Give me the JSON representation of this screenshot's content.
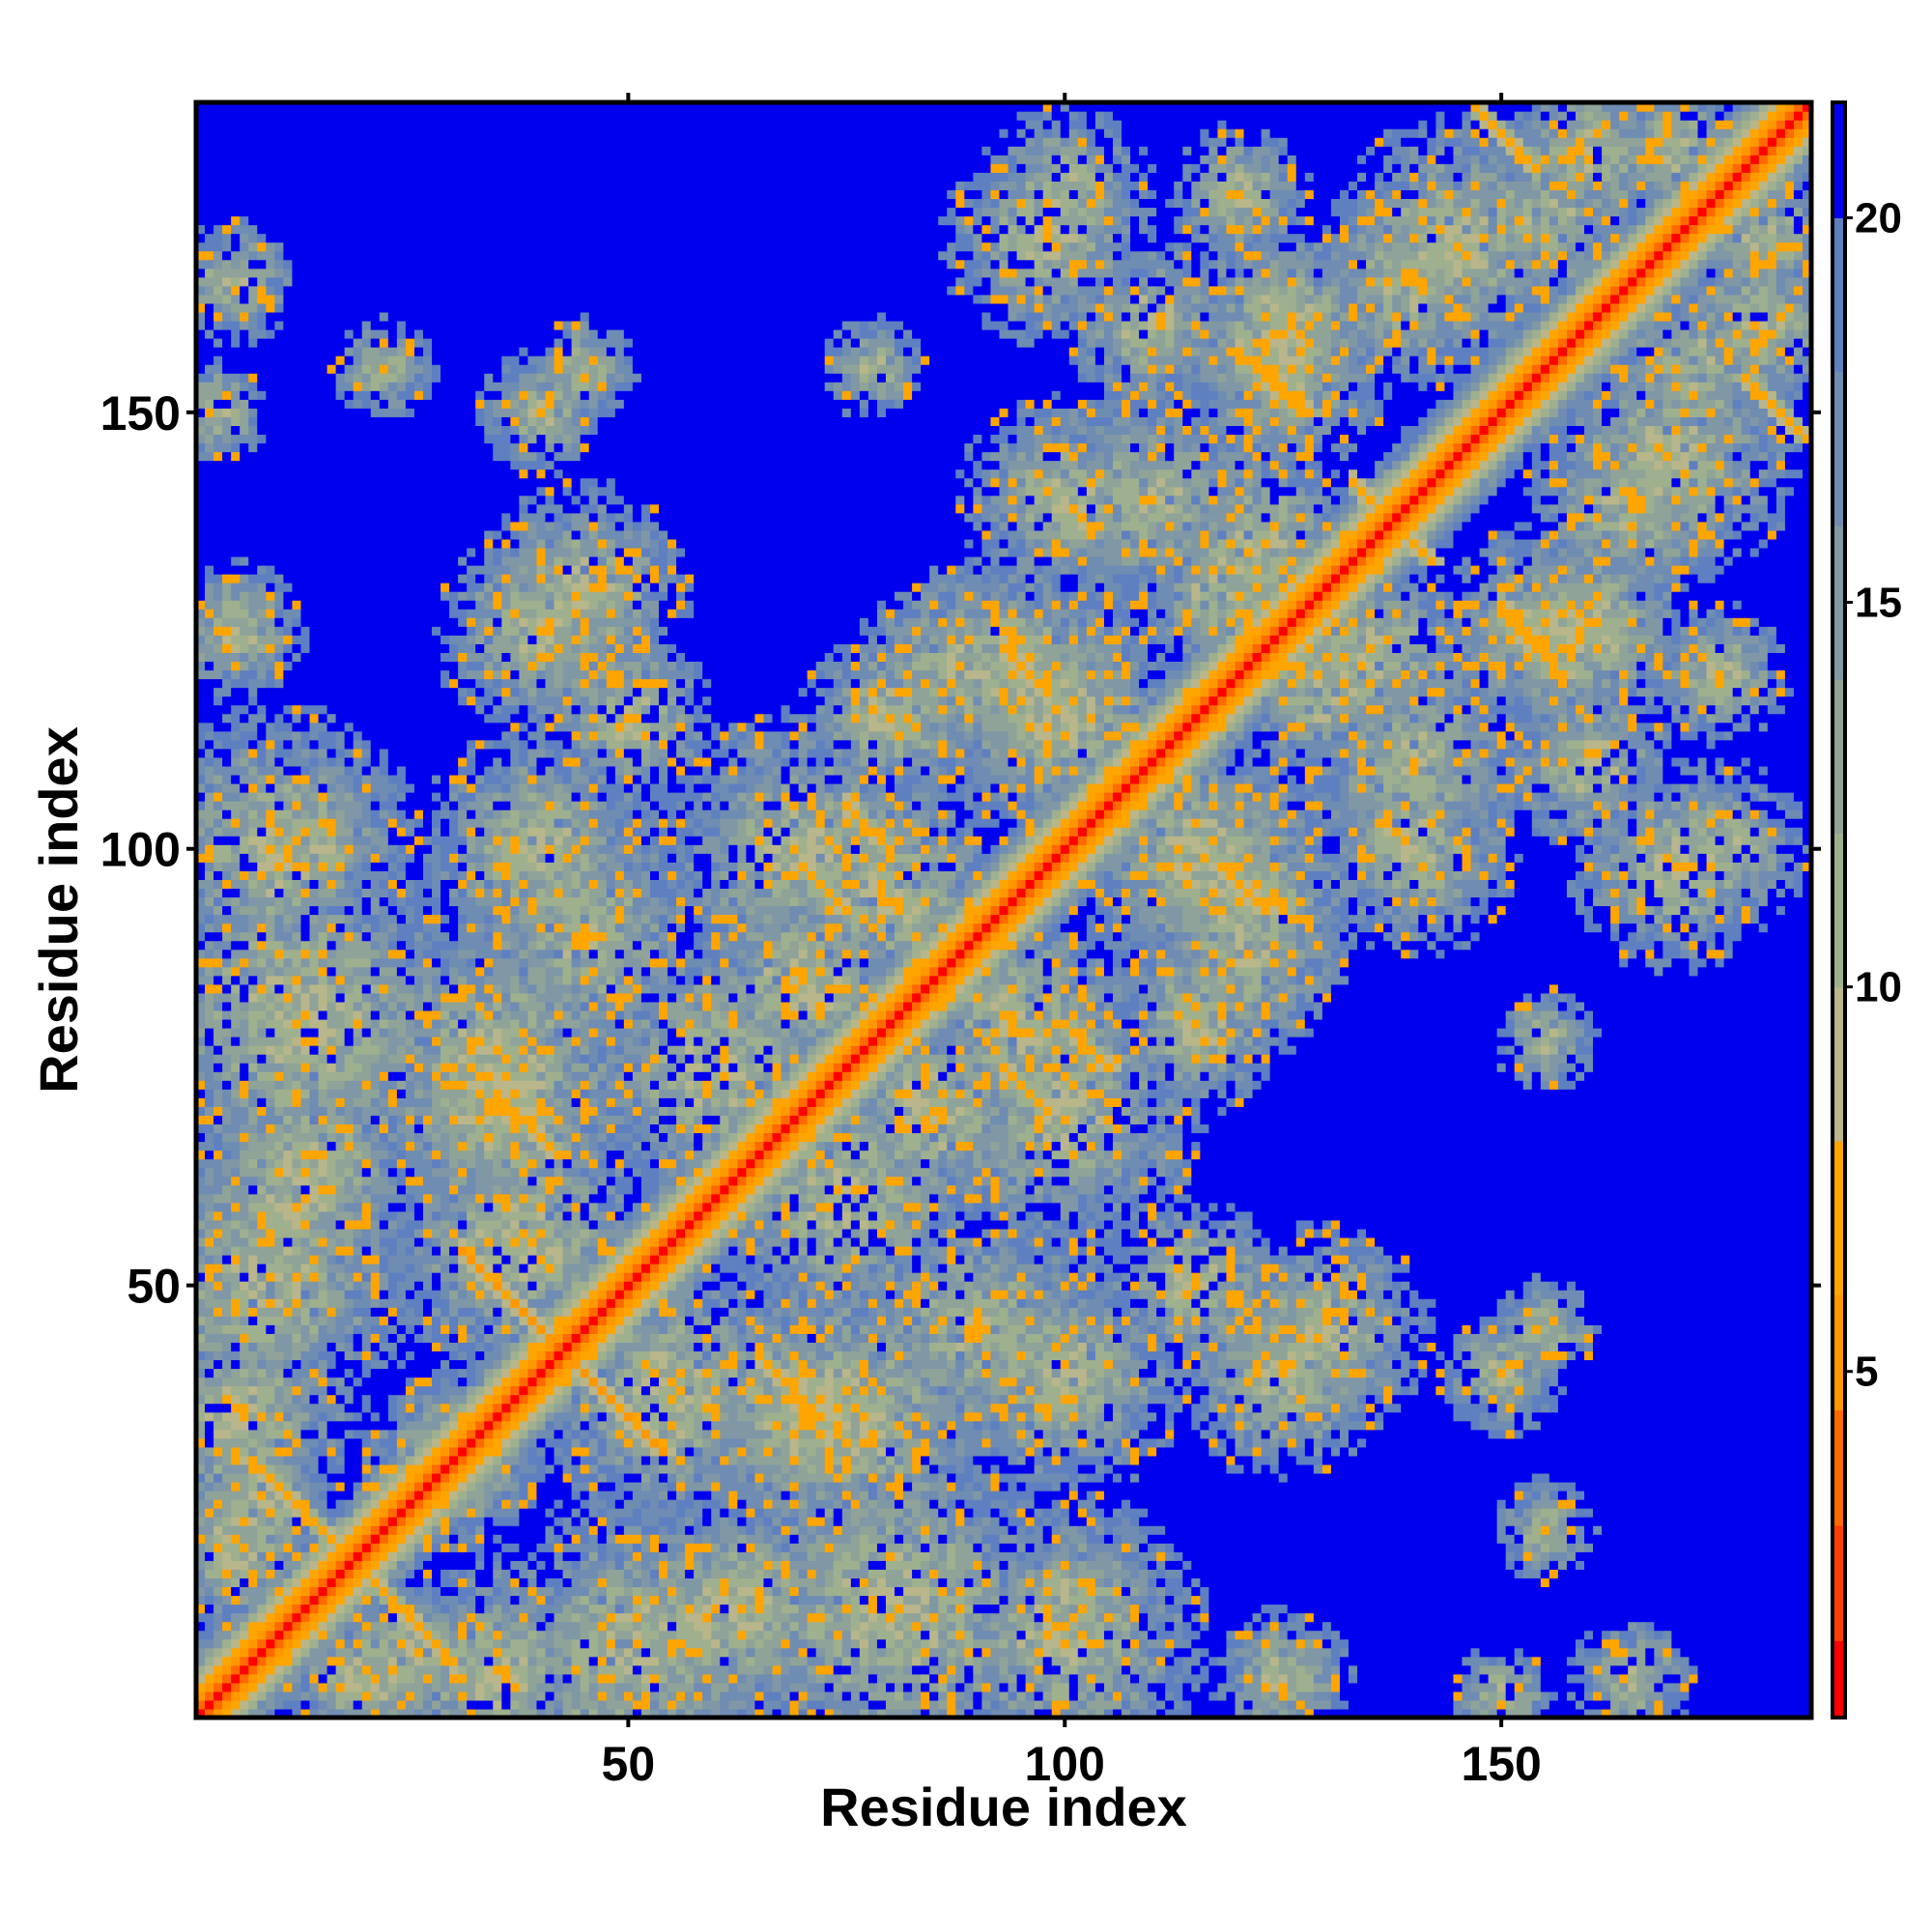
{
  "chart_data": {
    "type": "heatmap",
    "title": "",
    "xlabel": "Residue index",
    "ylabel": "Residue index",
    "n_residues": 185,
    "xlim": [
      1,
      185
    ],
    "ylim": [
      1,
      185
    ],
    "x_ticks": [
      50,
      100,
      150
    ],
    "y_ticks": [
      50,
      100,
      150
    ],
    "x_tick_labels": [
      "50",
      "100",
      "150"
    ],
    "y_tick_labels": [
      "50",
      "100",
      "150"
    ],
    "value_description": "pairwise residue distance map; values capped at the top of the color scale",
    "colorbar": {
      "range": [
        0.5,
        21.5
      ],
      "ticks": [
        5,
        10,
        15,
        20
      ],
      "tick_labels": [
        "5",
        "10",
        "15",
        "20"
      ],
      "position": "right",
      "colors": [
        {
          "max": 1.5,
          "color": "#ff0000"
        },
        {
          "max": 3.0,
          "color": "#ff4000"
        },
        {
          "max": 4.5,
          "color": "#ff6a00"
        },
        {
          "max": 6.0,
          "color": "#ff9800"
        },
        {
          "max": 8.0,
          "color": "#ffa500"
        },
        {
          "max": 10.0,
          "color": "#b8b68a"
        },
        {
          "max": 12.0,
          "color": "#9fb08f"
        },
        {
          "max": 14.0,
          "color": "#8fa399"
        },
        {
          "max": 16.0,
          "color": "#8097a6"
        },
        {
          "max": 18.0,
          "color": "#6f8cb2"
        },
        {
          "max": 20.0,
          "color": "#5e80c0"
        },
        {
          "max": 22.0,
          "color": "#0000ee"
        }
      ]
    },
    "diagonal_value": 1,
    "secondary_bands": [
      {
        "x": 39,
        "y": 46,
        "length": 16,
        "value": 5
      },
      {
        "x": 35,
        "y": 72,
        "length": 8,
        "value": 6
      },
      {
        "x": 7,
        "y": 30,
        "length": 12,
        "value": 6
      },
      {
        "x": 70,
        "y": 98,
        "length": 6,
        "value": 6
      },
      {
        "x": 100,
        "y": 80,
        "length": 6,
        "value": 6
      },
      {
        "x": 118,
        "y": 98,
        "length": 6,
        "value": 6
      },
      {
        "x": 122,
        "y": 156,
        "length": 7,
        "value": 6
      },
      {
        "x": 151,
        "y": 126,
        "length": 7,
        "value": 6
      },
      {
        "x": 178,
        "y": 154,
        "length": 8,
        "value": 6
      },
      {
        "x": 135,
        "y": 140,
        "length": 8,
        "value": 6
      }
    ],
    "contact_spots": [
      {
        "x": 13,
        "y": 80,
        "r": 22
      },
      {
        "x": 8,
        "y": 50,
        "r": 18
      },
      {
        "x": 5,
        "y": 35,
        "r": 14
      },
      {
        "x": 5,
        "y": 20,
        "r": 10
      },
      {
        "x": 10,
        "y": 100,
        "r": 16
      },
      {
        "x": 5,
        "y": 125,
        "r": 8
      },
      {
        "x": 5,
        "y": 165,
        "r": 7
      },
      {
        "x": 14,
        "y": 65,
        "r": 12
      },
      {
        "x": 35,
        "y": 75,
        "r": 18
      },
      {
        "x": 40,
        "y": 100,
        "r": 14
      },
      {
        "x": 40,
        "y": 125,
        "r": 12
      },
      {
        "x": 45,
        "y": 155,
        "r": 6
      },
      {
        "x": 50,
        "y": 115,
        "r": 10
      },
      {
        "x": 55,
        "y": 38,
        "r": 16
      },
      {
        "x": 60,
        "y": 12,
        "r": 14
      },
      {
        "x": 70,
        "y": 35,
        "r": 14
      },
      {
        "x": 75,
        "y": 60,
        "r": 16
      },
      {
        "x": 70,
        "y": 100,
        "r": 16
      },
      {
        "x": 80,
        "y": 115,
        "r": 10
      },
      {
        "x": 78,
        "y": 155,
        "r": 6
      },
      {
        "x": 85,
        "y": 70,
        "r": 14
      },
      {
        "x": 90,
        "y": 45,
        "r": 14
      },
      {
        "x": 95,
        "y": 80,
        "r": 14
      },
      {
        "x": 95,
        "y": 120,
        "r": 14
      },
      {
        "x": 100,
        "y": 140,
        "r": 12
      },
      {
        "x": 98,
        "y": 170,
        "r": 12
      },
      {
        "x": 110,
        "y": 160,
        "r": 10
      },
      {
        "x": 115,
        "y": 100,
        "r": 14
      },
      {
        "x": 120,
        "y": 88,
        "r": 12
      },
      {
        "x": 122,
        "y": 135,
        "r": 12
      },
      {
        "x": 125,
        "y": 160,
        "r": 12
      },
      {
        "x": 130,
        "y": 45,
        "r": 12
      },
      {
        "x": 130,
        "y": 118,
        "r": 10
      },
      {
        "x": 140,
        "y": 110,
        "r": 12
      },
      {
        "x": 145,
        "y": 170,
        "r": 14
      },
      {
        "x": 155,
        "y": 125,
        "r": 12
      },
      {
        "x": 160,
        "y": 180,
        "r": 10
      },
      {
        "x": 165,
        "y": 140,
        "r": 12
      },
      {
        "x": 172,
        "y": 155,
        "r": 10
      },
      {
        "x": 175,
        "y": 120,
        "r": 8
      },
      {
        "x": 180,
        "y": 170,
        "r": 8
      },
      {
        "x": 150,
        "y": 40,
        "r": 7
      },
      {
        "x": 150,
        "y": 3,
        "r": 6
      },
      {
        "x": 125,
        "y": 5,
        "r": 6
      },
      {
        "x": 100,
        "y": 15,
        "r": 6
      },
      {
        "x": 22,
        "y": 155,
        "r": 6
      },
      {
        "x": 100,
        "y": 175,
        "r": 10
      },
      {
        "x": 30,
        "y": 30,
        "r": 10
      },
      {
        "x": 25,
        "y": 8,
        "r": 8
      }
    ]
  }
}
